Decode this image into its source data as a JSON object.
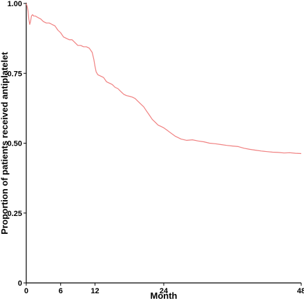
{
  "chart_data": {
    "type": "line",
    "title": "",
    "xlabel": "Month",
    "ylabel": "Proportion of patients received antiplatelet",
    "xlim": [
      0,
      48
    ],
    "ylim": [
      0,
      1
    ],
    "xticks": [
      0,
      6,
      12,
      24,
      48
    ],
    "xtick_labels": [
      "0",
      "6",
      "12",
      "24",
      "48"
    ],
    "yticks": [
      0,
      0.25,
      0.5,
      0.75,
      1.0
    ],
    "ytick_labels": [
      "0",
      "0.25",
      "0.50",
      "0.75",
      "1.00"
    ],
    "grid": false,
    "legend": "none",
    "series": [
      {
        "color": "#f08080",
        "x": [
          0,
          0.15,
          0.3,
          0.45,
          0.6,
          0.75,
          0.9,
          1.1,
          1.3,
          1.6,
          2.0,
          2.5,
          3.0,
          3.5,
          4.0,
          4.5,
          5.0,
          5.5,
          6.0,
          6.5,
          7.0,
          7.5,
          8.0,
          8.5,
          9.0,
          9.5,
          10.0,
          10.5,
          11.0,
          11.5,
          11.8,
          12.0,
          12.2,
          12.5,
          13.0,
          13.5,
          14.0,
          14.5,
          15.0,
          15.5,
          16.0,
          16.5,
          17.0,
          17.5,
          18.0,
          18.5,
          19.0,
          19.5,
          20.0,
          20.5,
          21.0,
          21.5,
          22.0,
          22.5,
          23.0,
          23.5,
          24.0,
          24.5,
          25.0,
          26.0,
          27.0,
          28.0,
          29.0,
          30.0,
          31.0,
          32.0,
          33.0,
          34.0,
          35.0,
          36.0,
          37.0,
          38.0,
          39.0,
          40.0,
          41.0,
          42.0,
          43.0,
          44.0,
          45.0,
          46.0,
          47.0,
          48.0
        ],
        "y": [
          1.0,
          0.99,
          0.975,
          0.945,
          0.925,
          0.935,
          0.955,
          0.96,
          0.955,
          0.955,
          0.95,
          0.945,
          0.935,
          0.93,
          0.93,
          0.925,
          0.92,
          0.905,
          0.895,
          0.88,
          0.875,
          0.87,
          0.87,
          0.86,
          0.85,
          0.85,
          0.845,
          0.845,
          0.84,
          0.825,
          0.8,
          0.775,
          0.755,
          0.745,
          0.74,
          0.735,
          0.72,
          0.715,
          0.71,
          0.7,
          0.695,
          0.685,
          0.675,
          0.67,
          0.668,
          0.665,
          0.66,
          0.65,
          0.64,
          0.63,
          0.615,
          0.6,
          0.585,
          0.575,
          0.565,
          0.56,
          0.555,
          0.548,
          0.54,
          0.525,
          0.515,
          0.51,
          0.512,
          0.508,
          0.505,
          0.5,
          0.498,
          0.495,
          0.492,
          0.49,
          0.488,
          0.482,
          0.478,
          0.475,
          0.472,
          0.47,
          0.468,
          0.467,
          0.465,
          0.466,
          0.464,
          0.463
        ]
      }
    ]
  }
}
